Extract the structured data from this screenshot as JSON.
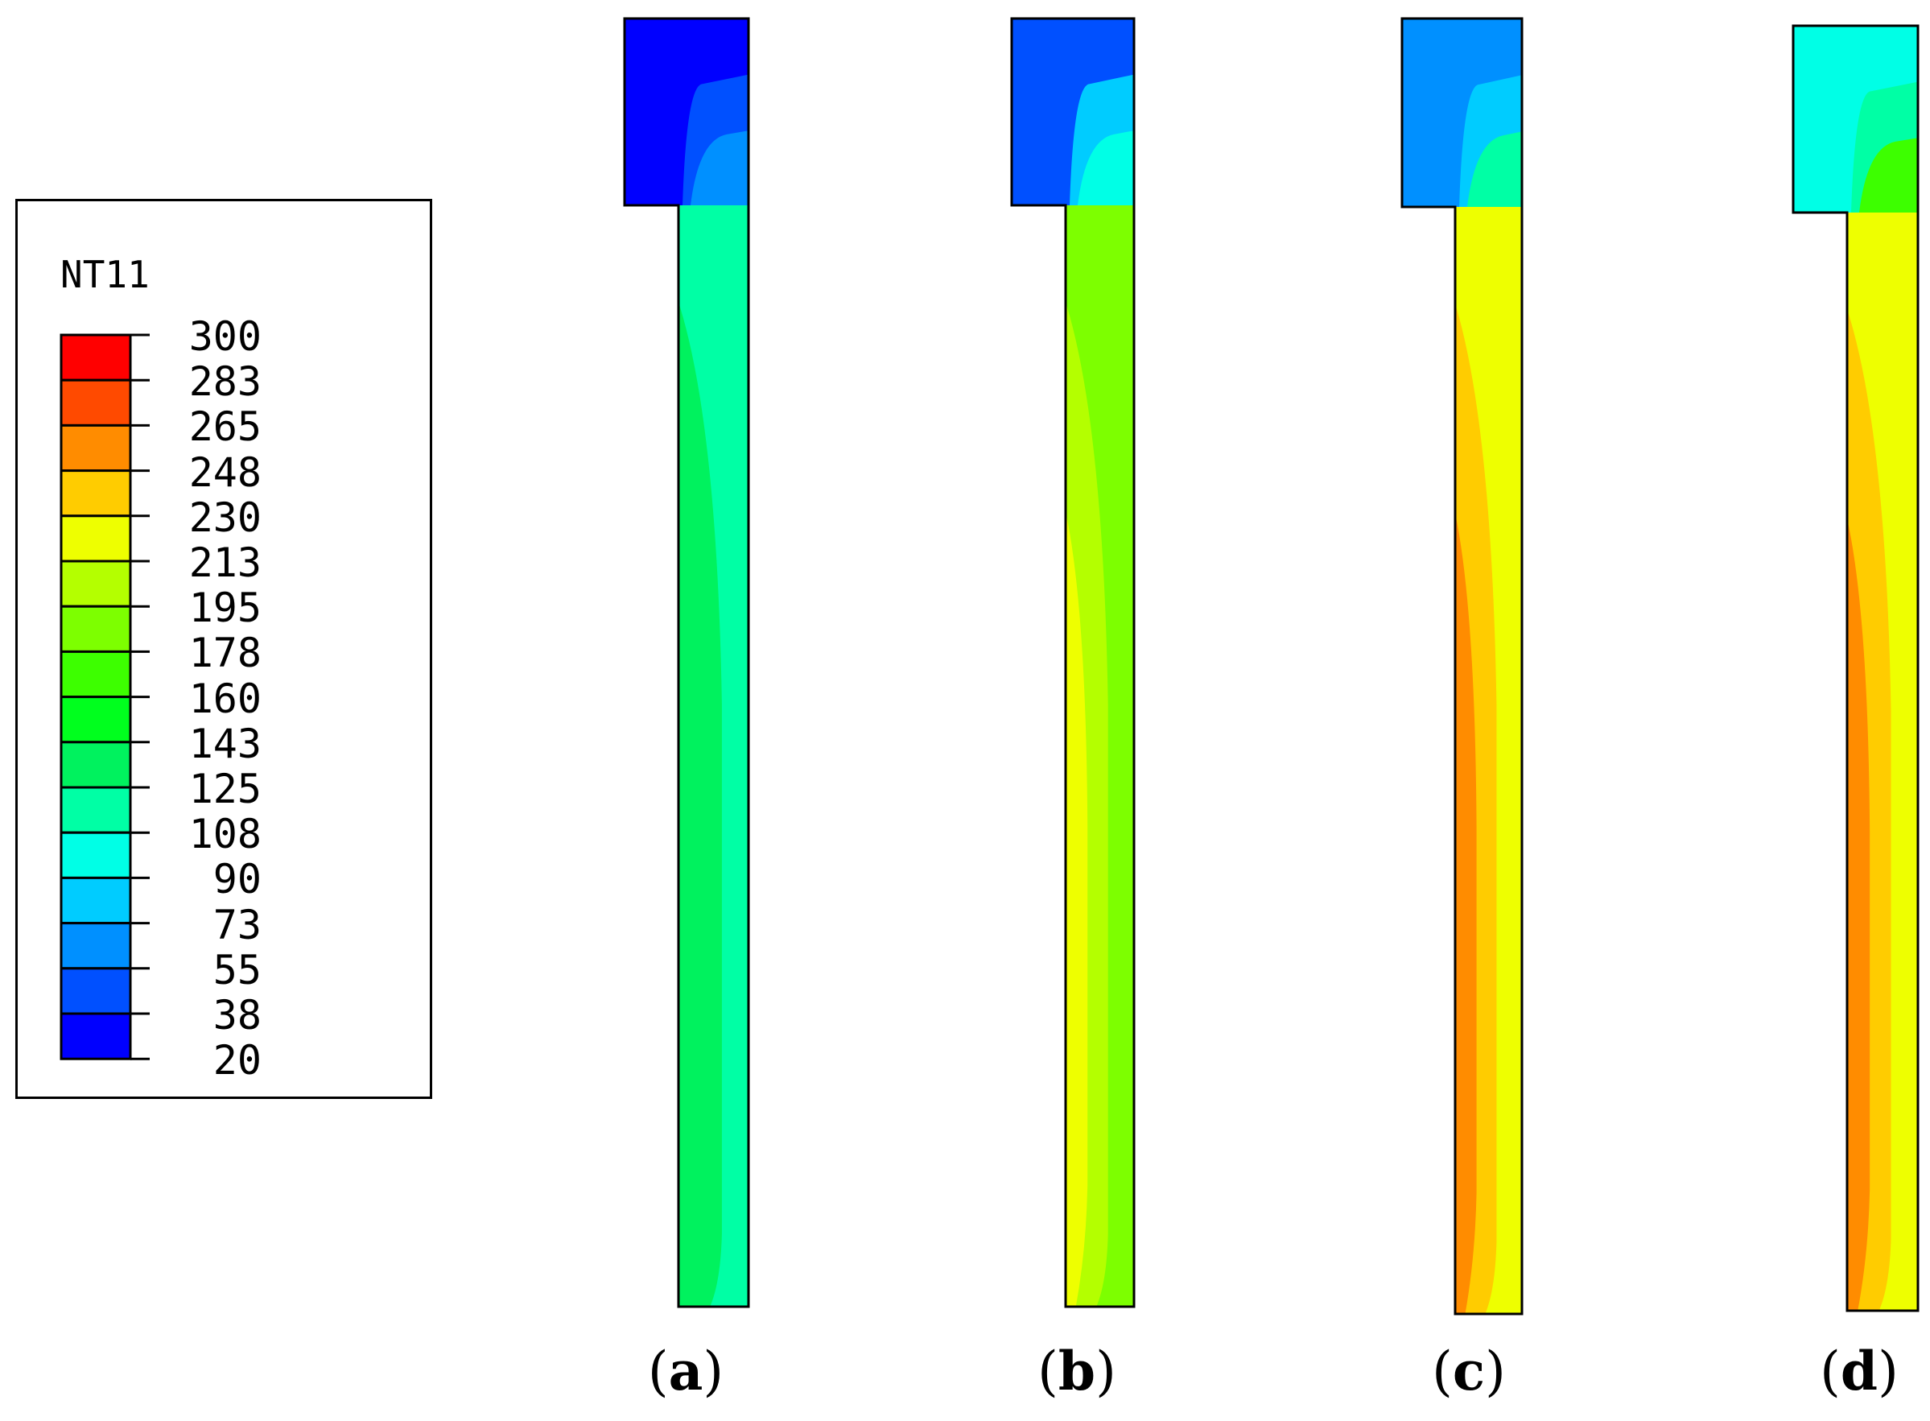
{
  "legend": {
    "title": "NT11",
    "levels": [
      "300",
      "283",
      "265",
      "248",
      "230",
      "213",
      "195",
      "178",
      "160",
      "143",
      "125",
      "108",
      "90",
      "73",
      "55",
      "38",
      "20"
    ],
    "band_colors": [
      "#ff0000",
      "#ff4a00",
      "#ff8c00",
      "#ffcc00",
      "#eeff00",
      "#b4ff00",
      "#7dff00",
      "#3dff00",
      "#00ff1e",
      "#00f25e",
      "#00ffa5",
      "#00ffe6",
      "#00ccff",
      "#0090ff",
      "#0050ff",
      "#0000ff"
    ]
  },
  "panels": [
    {
      "id": "a",
      "label_open": "(",
      "label_letter": "a",
      "label_close": ")",
      "colors": {
        "head": [
          "#0000ff",
          "#0050ff",
          "#0090ff"
        ],
        "shaft": [
          "#00f25e",
          "#00ffa5"
        ]
      }
    },
    {
      "id": "b",
      "label_open": "(",
      "label_letter": "b",
      "label_close": ")",
      "colors": {
        "head": [
          "#0050ff",
          "#00ccff",
          "#00ffe6"
        ],
        "shaft": [
          "#eeff00",
          "#b4ff00",
          "#7dff00"
        ]
      }
    },
    {
      "id": "c",
      "label_open": "(",
      "label_letter": "c",
      "label_close": ")",
      "colors": {
        "head": [
          "#0090ff",
          "#00ccff",
          "#00ffa5"
        ],
        "shaft": [
          "#ff8c00",
          "#ffcc00",
          "#eeff00"
        ]
      }
    },
    {
      "id": "d",
      "label_open": "(",
      "label_letter": "d",
      "label_close": ")",
      "colors": {
        "head": [
          "#00ffe6",
          "#00ffa5",
          "#3dff00"
        ],
        "shaft": [
          "#ff8c00",
          "#ffcc00",
          "#eeff00"
        ]
      }
    }
  ]
}
